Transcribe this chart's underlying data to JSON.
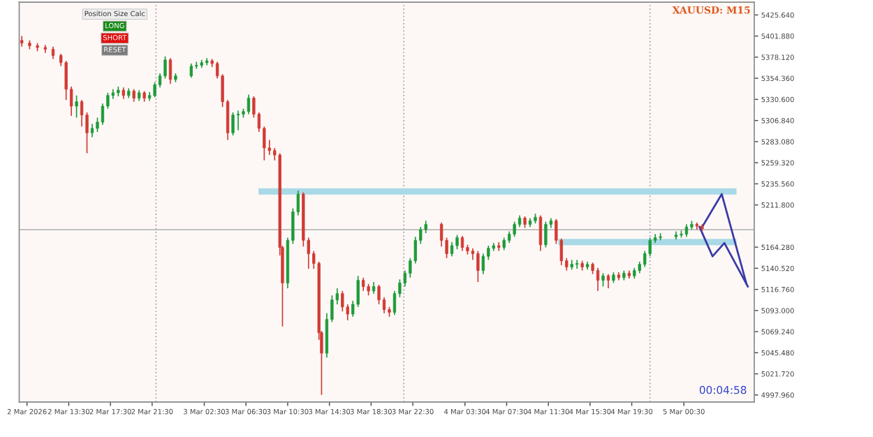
{
  "chart_data": {
    "type": "candlestick",
    "title": "XAUUSD: M15",
    "x": [
      "2026-03-02T09:00",
      "2026-03-02T09:45",
      "2026-03-02T10:30",
      "2026-03-02T11:15",
      "2026-03-02T12:00",
      "2026-03-02T12:45",
      "2026-03-02T13:15",
      "2026-03-02T13:45",
      "2026-03-02T14:15",
      "2026-03-02T14:45",
      "2026-03-02T15:15",
      "2026-03-02T15:45",
      "2026-03-02T16:15",
      "2026-03-02T16:45",
      "2026-03-02T17:15",
      "2026-03-02T17:45",
      "2026-03-02T18:15",
      "2026-03-02T18:45",
      "2026-03-02T19:15",
      "2026-03-02T19:45",
      "2026-03-02T20:15",
      "2026-03-02T20:45",
      "2026-03-02T21:15",
      "2026-03-02T21:45",
      "2026-03-02T22:15",
      "2026-03-02T22:45",
      "2026-03-02T23:15",
      "2026-03-02T23:45",
      "2026-03-03T01:15",
      "2026-03-03T01:45",
      "2026-03-03T02:15",
      "2026-03-03T02:45",
      "2026-03-03T03:15",
      "2026-03-03T03:45",
      "2026-03-03T04:15",
      "2026-03-03T04:45",
      "2026-03-03T05:15",
      "2026-03-03T05:45",
      "2026-03-03T06:15",
      "2026-03-03T06:45",
      "2026-03-03T07:15",
      "2026-03-03T07:45",
      "2026-03-03T08:15",
      "2026-03-03T08:45",
      "2026-03-03T09:15",
      "2026-03-03T09:45",
      "2026-03-03T10:00",
      "2026-03-03T10:30",
      "2026-03-03T11:00",
      "2026-03-03T11:30",
      "2026-03-03T12:00",
      "2026-03-03T12:30",
      "2026-03-03T13:00",
      "2026-03-03T13:30",
      "2026-03-03T13:45",
      "2026-03-03T14:15",
      "2026-03-03T14:45",
      "2026-03-03T15:15",
      "2026-03-03T15:45",
      "2026-03-03T16:15",
      "2026-03-03T16:45",
      "2026-03-03T17:15",
      "2026-03-03T17:45",
      "2026-03-03T18:15",
      "2026-03-03T18:45",
      "2026-03-03T19:15",
      "2026-03-03T19:45",
      "2026-03-03T20:15",
      "2026-03-03T20:45",
      "2026-03-03T21:15",
      "2026-03-03T21:45",
      "2026-03-03T22:15",
      "2026-03-03T22:45",
      "2026-03-03T23:15",
      "2026-03-03T23:45",
      "2026-03-04T01:15",
      "2026-03-04T01:45",
      "2026-03-04T02:15",
      "2026-03-04T02:45",
      "2026-03-04T03:15",
      "2026-03-04T03:45",
      "2026-03-04T04:15",
      "2026-03-04T04:45",
      "2026-03-04T05:15",
      "2026-03-04T05:45",
      "2026-03-04T06:15",
      "2026-03-04T06:45",
      "2026-03-04T07:15",
      "2026-03-04T07:45",
      "2026-03-04T08:15",
      "2026-03-04T08:45",
      "2026-03-04T09:15",
      "2026-03-04T09:45",
      "2026-03-04T10:15",
      "2026-03-04T10:45",
      "2026-03-04T11:15",
      "2026-03-04T11:45",
      "2026-03-04T12:15",
      "2026-03-04T12:45",
      "2026-03-04T13:15",
      "2026-03-04T13:45",
      "2026-03-04T14:15",
      "2026-03-04T14:45",
      "2026-03-04T15:15",
      "2026-03-04T15:45",
      "2026-03-04T16:15",
      "2026-03-04T16:45",
      "2026-03-04T17:15",
      "2026-03-04T17:45",
      "2026-03-04T18:15",
      "2026-03-04T18:45",
      "2026-03-04T19:15",
      "2026-03-04T19:45",
      "2026-03-04T20:15",
      "2026-03-04T20:45",
      "2026-03-04T21:15",
      "2026-03-04T21:45",
      "2026-03-04T22:15",
      "2026-03-04T23:45",
      "2026-03-05T00:15",
      "2026-03-05T00:45",
      "2026-03-05T01:15",
      "2026-03-05T01:45",
      "2026-03-05T02:15"
    ],
    "ohlc": [
      [
        5397,
        5402,
        5390,
        5394
      ],
      [
        5394,
        5397,
        5387,
        5391
      ],
      [
        5391,
        5394,
        5385,
        5389
      ],
      [
        5389,
        5392,
        5383,
        5387
      ],
      [
        5387,
        5390,
        5376,
        5380
      ],
      [
        5380,
        5382,
        5368,
        5372
      ],
      [
        5372,
        5374,
        5330,
        5342
      ],
      [
        5342,
        5345,
        5312,
        5323
      ],
      [
        5323,
        5335,
        5310,
        5328
      ],
      [
        5328,
        5330,
        5300,
        5313
      ],
      [
        5313,
        5316,
        5270,
        5293
      ],
      [
        5293,
        5303,
        5288,
        5298
      ],
      [
        5298,
        5310,
        5294,
        5305
      ],
      [
        5305,
        5326,
        5302,
        5323
      ],
      [
        5323,
        5338,
        5320,
        5335
      ],
      [
        5335,
        5342,
        5331,
        5338
      ],
      [
        5338,
        5345,
        5334,
        5341
      ],
      [
        5341,
        5344,
        5331,
        5335
      ],
      [
        5335,
        5343,
        5332,
        5340
      ],
      [
        5340,
        5342,
        5328,
        5332
      ],
      [
        5332,
        5341,
        5329,
        5338
      ],
      [
        5338,
        5340,
        5328,
        5332
      ],
      [
        5332,
        5339,
        5329,
        5335
      ],
      [
        5335,
        5350,
        5333,
        5347
      ],
      [
        5347,
        5360,
        5344,
        5357
      ],
      [
        5357,
        5379,
        5354,
        5375
      ],
      [
        5375,
        5377,
        5348,
        5353
      ],
      [
        5353,
        5360,
        5350,
        5357
      ],
      [
        5357,
        5371,
        5355,
        5368
      ],
      [
        5368,
        5373,
        5365,
        5369
      ],
      [
        5369,
        5375,
        5366,
        5372
      ],
      [
        5372,
        5377,
        5369,
        5374
      ],
      [
        5374,
        5376,
        5367,
        5371
      ],
      [
        5371,
        5373,
        5354,
        5357
      ],
      [
        5357,
        5359,
        5322,
        5328
      ],
      [
        5328,
        5330,
        5285,
        5293
      ],
      [
        5293,
        5316,
        5290,
        5313
      ],
      [
        5313,
        5318,
        5296,
        5314
      ],
      [
        5314,
        5320,
        5310,
        5317
      ],
      [
        5317,
        5336,
        5314,
        5332
      ],
      [
        5332,
        5334,
        5310,
        5314
      ],
      [
        5314,
        5316,
        5294,
        5298
      ],
      [
        5298,
        5300,
        5262,
        5276
      ],
      [
        5276,
        5285,
        5268,
        5273
      ],
      [
        5273,
        5276,
        5262,
        5268
      ],
      [
        5268,
        5270,
        5155,
        5164
      ],
      [
        5164,
        5166,
        5075,
        5124
      ],
      [
        5124,
        5175,
        5118,
        5172
      ],
      [
        5172,
        5208,
        5168,
        5204
      ],
      [
        5204,
        5228,
        5200,
        5224
      ],
      [
        5224,
        5226,
        5165,
        5172
      ],
      [
        5172,
        5175,
        5140,
        5157
      ],
      [
        5157,
        5160,
        5140,
        5146
      ],
      [
        5146,
        5148,
        5060,
        5068
      ],
      [
        5068,
        5070,
        4998,
        5045
      ],
      [
        5045,
        5090,
        5040,
        5083
      ],
      [
        5083,
        5110,
        5080,
        5105
      ],
      [
        5105,
        5118,
        5100,
        5112
      ],
      [
        5112,
        5115,
        5092,
        5097
      ],
      [
        5097,
        5100,
        5082,
        5089
      ],
      [
        5089,
        5104,
        5086,
        5100
      ],
      [
        5100,
        5132,
        5097,
        5127
      ],
      [
        5127,
        5130,
        5115,
        5120
      ],
      [
        5120,
        5123,
        5110,
        5115
      ],
      [
        5115,
        5125,
        5112,
        5120
      ],
      [
        5120,
        5122,
        5100,
        5105
      ],
      [
        5105,
        5108,
        5090,
        5094
      ],
      [
        5094,
        5097,
        5086,
        5091
      ],
      [
        5091,
        5115,
        5088,
        5112
      ],
      [
        5112,
        5128,
        5108,
        5124
      ],
      [
        5124,
        5138,
        5120,
        5135
      ],
      [
        5135,
        5152,
        5130,
        5149
      ],
      [
        5149,
        5176,
        5146,
        5172
      ],
      [
        5172,
        5187,
        5168,
        5184
      ],
      [
        5184,
        5194,
        5180,
        5190
      ],
      [
        5190,
        5192,
        5165,
        5172
      ],
      [
        5172,
        5175,
        5152,
        5157
      ],
      [
        5157,
        5170,
        5154,
        5166
      ],
      [
        5166,
        5178,
        5162,
        5175
      ],
      [
        5175,
        5177,
        5160,
        5164
      ],
      [
        5164,
        5167,
        5156,
        5160
      ],
      [
        5160,
        5163,
        5150,
        5157
      ],
      [
        5157,
        5160,
        5125,
        5138
      ],
      [
        5138,
        5157,
        5134,
        5154
      ],
      [
        5154,
        5166,
        5150,
        5163
      ],
      [
        5163,
        5169,
        5160,
        5166
      ],
      [
        5166,
        5170,
        5160,
        5164
      ],
      [
        5164,
        5175,
        5161,
        5172
      ],
      [
        5172,
        5182,
        5169,
        5179
      ],
      [
        5179,
        5193,
        5176,
        5190
      ],
      [
        5190,
        5200,
        5187,
        5197
      ],
      [
        5197,
        5199,
        5186,
        5190
      ],
      [
        5190,
        5197,
        5187,
        5194
      ],
      [
        5194,
        5202,
        5191,
        5198
      ],
      [
        5198,
        5200,
        5160,
        5167
      ],
      [
        5167,
        5193,
        5164,
        5190
      ],
      [
        5190,
        5197,
        5186,
        5194
      ],
      [
        5194,
        5196,
        5168,
        5172
      ],
      [
        5172,
        5174,
        5144,
        5149
      ],
      [
        5149,
        5152,
        5138,
        5142
      ],
      [
        5142,
        5150,
        5139,
        5145
      ],
      [
        5145,
        5150,
        5140,
        5146
      ],
      [
        5146,
        5149,
        5138,
        5142
      ],
      [
        5142,
        5148,
        5139,
        5145
      ],
      [
        5145,
        5147,
        5134,
        5138
      ],
      [
        5138,
        5141,
        5115,
        5127
      ],
      [
        5127,
        5135,
        5120,
        5132
      ],
      [
        5132,
        5134,
        5118,
        5127
      ],
      [
        5127,
        5136,
        5124,
        5133
      ],
      [
        5133,
        5136,
        5127,
        5130
      ],
      [
        5130,
        5138,
        5127,
        5135
      ],
      [
        5135,
        5138,
        5129,
        5132
      ],
      [
        5132,
        5141,
        5129,
        5138
      ],
      [
        5138,
        5148,
        5135,
        5145
      ],
      [
        5145,
        5160,
        5142,
        5157
      ],
      [
        5157,
        5175,
        5154,
        5172
      ],
      [
        5172,
        5179,
        5169,
        5175
      ],
      [
        5175,
        5180,
        5172,
        5176
      ],
      [
        5176,
        5182,
        5173,
        5178
      ],
      [
        5178,
        5183,
        5175,
        5179
      ],
      [
        5179,
        5190,
        5176,
        5187
      ],
      [
        5187,
        5194,
        5184,
        5190
      ],
      [
        5190,
        5192,
        5184,
        5188
      ],
      [
        5188,
        5190,
        5182,
        5185
      ]
    ],
    "series": [
      {
        "type": "line",
        "color": "#a9d9e6",
        "x": [
          "2026-03-03T08:00",
          "2026-03-05T05:15"
        ],
        "values": [
          5227,
          5227
        ]
      },
      {
        "type": "line",
        "color": "#a9d9e6",
        "x": [
          "2026-03-04T12:45",
          "2026-03-05T05:15"
        ],
        "values": [
          5170,
          5170
        ]
      },
      {
        "type": "line",
        "color": "#3b3ba6",
        "x": [
          "2026-03-05T02:15",
          "2026-03-05T04:08",
          "2026-03-05T06:30"
        ],
        "values": [
          5187,
          5224,
          5123
        ]
      },
      {
        "type": "line",
        "color": "#3b3ba6",
        "x": [
          "2026-03-05T02:00",
          "2026-03-05T03:15",
          "2026-03-05T04:23",
          "2026-03-05T06:38"
        ],
        "values": [
          5187,
          5154,
          5169,
          5120
        ]
      }
    ],
    "xlim": [
      "2026-03-02T08:45",
      "2026-03-05T07:15"
    ],
    "ylim": [
      4990,
      5440
    ],
    "xticks": [
      {
        "value": "2026-03-02T09:30",
        "label": "2 Mar 2026"
      },
      {
        "value": "2026-03-02T13:30",
        "label": "2 Mar 13:30"
      },
      {
        "value": "2026-03-02T17:30",
        "label": "2 Mar 17:30"
      },
      {
        "value": "2026-03-02T21:30",
        "label": "2 Mar 21:30"
      },
      {
        "value": "2026-03-03T02:30",
        "label": "3 Mar 02:30"
      },
      {
        "value": "2026-03-03T06:30",
        "label": "3 Mar 06:30"
      },
      {
        "value": "2026-03-03T10:30",
        "label": "3 Mar 10:30"
      },
      {
        "value": "2026-03-03T14:30",
        "label": "3 Mar 14:30"
      },
      {
        "value": "2026-03-03T18:30",
        "label": "3 Mar 18:30"
      },
      {
        "value": "2026-03-03T22:30",
        "label": "3 Mar 22:30"
      },
      {
        "value": "2026-03-04T03:30",
        "label": "4 Mar 03:30"
      },
      {
        "value": "2026-03-04T07:30",
        "label": "4 Mar 07:30"
      },
      {
        "value": "2026-03-04T11:30",
        "label": "4 Mar 11:30"
      },
      {
        "value": "2026-03-04T15:30",
        "label": "4 Mar 15:30"
      },
      {
        "value": "2026-03-04T19:30",
        "label": "4 Mar 19:30"
      },
      {
        "value": "2026-03-05T00:30",
        "label": "5 Mar 00:30"
      }
    ],
    "yticks": [
      {
        "value": 4997.96,
        "label": "4997.960"
      },
      {
        "value": 5021.72,
        "label": "5021.720"
      },
      {
        "value": 5045.48,
        "label": "5045.480"
      },
      {
        "value": 5069.24,
        "label": "5069.240"
      },
      {
        "value": 5093.0,
        "label": "5093.000"
      },
      {
        "value": 5116.76,
        "label": "5116.760"
      },
      {
        "value": 5140.52,
        "label": "5140.520"
      },
      {
        "value": 5164.28,
        "label": "5164.280"
      },
      {
        "value": 5211.8,
        "label": "5211.800"
      },
      {
        "value": 5235.56,
        "label": "5235.560"
      },
      {
        "value": 5259.32,
        "label": "5259.320"
      },
      {
        "value": 5283.08,
        "label": "5283.080"
      },
      {
        "value": 5306.84,
        "label": "5306.840"
      },
      {
        "value": 5330.6,
        "label": "5330.600"
      },
      {
        "value": 5354.36,
        "label": "5354.360"
      },
      {
        "value": 5378.12,
        "label": "5378.120"
      },
      {
        "value": 5401.88,
        "label": "5401.880"
      },
      {
        "value": 5425.64,
        "label": "5425.640"
      }
    ],
    "ref_lines": [
      {
        "axis": "x",
        "value": "2026-03-02T21:52",
        "color": "#b0b0b0",
        "line_style": "dotted"
      },
      {
        "axis": "x",
        "value": "2026-03-03T21:38",
        "color": "#b0b0b0",
        "line_style": "dotted"
      },
      {
        "axis": "x",
        "value": "2026-03-04T21:15",
        "color": "#b0b0b0",
        "line_style": "dotted"
      },
      {
        "axis": "y",
        "value": 5184,
        "color": "#c0c0c0",
        "line_style": "solid"
      }
    ],
    "annotations": [
      "Position Size Calc",
      "LONG",
      "SHORT",
      "RESET",
      "00:04:58"
    ],
    "grid": false,
    "legend": false
  }
}
